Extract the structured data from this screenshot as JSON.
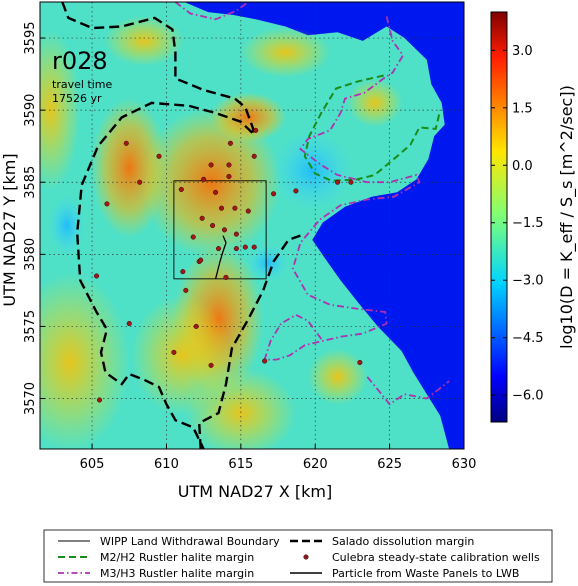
{
  "chart_data": {
    "type": "heatmap",
    "annotation": {
      "run_id": "r028",
      "travel_time_label": "travel time",
      "travel_time_value": "17526 yr"
    },
    "xlabel": "UTM NAD27 X [km]",
    "ylabel": "UTM NAD27 Y [km]",
    "xlim": [
      601.5,
      630
    ],
    "ylim": [
      3566.5,
      3597.5
    ],
    "xticks": [
      605,
      610,
      615,
      620,
      625,
      630
    ],
    "yticks": [
      3570,
      3575,
      3580,
      3585,
      3590,
      3595
    ],
    "grid": true,
    "colorbar": {
      "label": "log10(D = K_eff / S_s [m^2/sec])",
      "range": [
        -6.7,
        4.0
      ],
      "ticks": [
        3.0,
        1.5,
        0.0,
        -1.5,
        -3.0,
        -4.5,
        -6.0
      ],
      "colormap": "jet"
    },
    "legend": {
      "placement": "below",
      "entries": [
        {
          "label": "WIPP Land Withdrawal Boundary",
          "style": "thin-solid",
          "color": "#000000"
        },
        {
          "label": "Salado dissolution margin",
          "style": "bold-dashed",
          "color": "#000000"
        },
        {
          "label": "M2/H2 Rustler halite margin",
          "style": "dashed",
          "color": "#1a8c1a"
        },
        {
          "label": "Culebra steady-state calibration wells",
          "style": "dot",
          "color": "#8b1a1a"
        },
        {
          "label": "M3/H3 Rustler halite margin",
          "style": "dash-dot",
          "color": "#b030b0"
        },
        {
          "label": "Particle from Waste Panels to LWB",
          "style": "solid",
          "color": "#000000"
        }
      ]
    },
    "wells": [
      [
        607.3,
        3587.7
      ],
      [
        608.2,
        3585.0
      ],
      [
        606.0,
        3583.5
      ],
      [
        605.3,
        3578.5
      ],
      [
        607.5,
        3575.2
      ],
      [
        609.5,
        3586.8
      ],
      [
        611.0,
        3584.5
      ],
      [
        612.5,
        3585.2
      ],
      [
        613.3,
        3584.3
      ],
      [
        614.2,
        3585.4
      ],
      [
        613.7,
        3583.2
      ],
      [
        614.6,
        3583.2
      ],
      [
        612.4,
        3582.5
      ],
      [
        613.1,
        3582.0
      ],
      [
        613.9,
        3581.7
      ],
      [
        614.7,
        3581.4
      ],
      [
        615.5,
        3583.0
      ],
      [
        613.5,
        3580.4
      ],
      [
        614.7,
        3580.4
      ],
      [
        615.3,
        3580.5
      ],
      [
        612.2,
        3579.5
      ],
      [
        611.1,
        3578.8
      ],
      [
        611.8,
        3581.2
      ],
      [
        612.3,
        3579.6
      ],
      [
        617.2,
        3584.2
      ],
      [
        618.7,
        3584.4
      ],
      [
        615.9,
        3586.8
      ],
      [
        616.0,
        3588.6
      ],
      [
        614.3,
        3587.7
      ],
      [
        613.0,
        3586.2
      ],
      [
        614.0,
        3578.4
      ],
      [
        611.3,
        3577.5
      ],
      [
        612.0,
        3575.0
      ],
      [
        613.0,
        3572.3
      ],
      [
        621.5,
        3585.0
      ],
      [
        622.4,
        3585.0
      ],
      [
        623.0,
        3572.5
      ],
      [
        616.6,
        3572.6
      ],
      [
        605.5,
        3569.9
      ],
      [
        615.9,
        3580.5
      ],
      [
        610.5,
        3573.2
      ],
      [
        614.2,
        3586.2
      ]
    ],
    "lwb_box": {
      "x": [
        610.5,
        616.7
      ],
      "y": [
        3578.3,
        3585.1
      ]
    },
    "particle_path": [
      [
        613.8,
        3581.3
      ],
      [
        614.0,
        3580.8
      ],
      [
        613.8,
        3580.2
      ],
      [
        613.6,
        3579.5
      ],
      [
        613.3,
        3578.3
      ]
    ],
    "salado_margin": [
      [
        603.0,
        3597.5
      ],
      [
        603.4,
        3596.4
      ],
      [
        605.0,
        3595.7
      ],
      [
        607.0,
        3595.8
      ],
      [
        609.2,
        3596.4
      ],
      [
        610.4,
        3595.6
      ],
      [
        610.6,
        3594.0
      ],
      [
        610.6,
        3592.2
      ],
      [
        612.5,
        3591.4
      ],
      [
        614.6,
        3590.8
      ],
      [
        615.3,
        3590.2
      ],
      [
        615.8,
        3588.8
      ],
      [
        615.9,
        3588.3
      ],
      [
        615.0,
        3589.2
      ],
      [
        613.3,
        3589.8
      ],
      [
        611.5,
        3590.3
      ],
      [
        609.0,
        3590.5
      ],
      [
        607.0,
        3589.5
      ],
      [
        605.4,
        3587.5
      ],
      [
        604.3,
        3584.8
      ],
      [
        604.0,
        3581.5
      ],
      [
        604.2,
        3578.2
      ],
      [
        605.3,
        3576.0
      ],
      [
        606.0,
        3574.8
      ],
      [
        605.6,
        3573.2
      ],
      [
        605.9,
        3571.8
      ],
      [
        607.0,
        3571.0
      ],
      [
        607.5,
        3571.7
      ],
      [
        608.5,
        3571.3
      ],
      [
        609.5,
        3570.8
      ],
      [
        610.0,
        3569.6
      ],
      [
        610.6,
        3568.5
      ],
      [
        611.8,
        3568.0
      ],
      [
        612.5,
        3566.5
      ]
    ],
    "salado_margin_2": [
      [
        612.3,
        3566.5
      ],
      [
        612.2,
        3568.3
      ],
      [
        613.5,
        3569.0
      ],
      [
        614.0,
        3571.0
      ],
      [
        614.4,
        3573.5
      ],
      [
        615.5,
        3575.5
      ],
      [
        616.5,
        3577.5
      ],
      [
        617.2,
        3579.5
      ],
      [
        618.2,
        3581.0
      ],
      [
        619.0,
        3581.3
      ]
    ],
    "m2_margin": [
      [
        624.6,
        3592.4
      ],
      [
        622.9,
        3592.0
      ],
      [
        621.4,
        3591.5
      ],
      [
        620.4,
        3589.8
      ],
      [
        619.6,
        3588.2
      ],
      [
        619.3,
        3586.8
      ],
      [
        620.0,
        3585.6
      ],
      [
        621.1,
        3585.1
      ],
      [
        622.8,
        3585.2
      ],
      [
        624.0,
        3585.5
      ],
      [
        625.5,
        3586.8
      ],
      [
        626.4,
        3587.6
      ],
      [
        627.0,
        3588.8
      ],
      [
        628.1,
        3588.7
      ],
      [
        628.4,
        3590.0
      ]
    ],
    "m3_margin": [
      [
        624.8,
        3596.5
      ],
      [
        625.2,
        3594.8
      ],
      [
        625.9,
        3593.8
      ],
      [
        625.2,
        3592.6
      ],
      [
        624.6,
        3592.2
      ],
      [
        623.3,
        3591.2
      ],
      [
        622.0,
        3590.8
      ],
      [
        621.7,
        3589.8
      ],
      [
        621.0,
        3588.6
      ],
      [
        619.5,
        3588.0
      ],
      [
        619.0,
        3587.3
      ],
      [
        620.4,
        3586.2
      ],
      [
        621.5,
        3585.5
      ],
      [
        623.5,
        3585.0
      ],
      [
        625.0,
        3585.0
      ],
      [
        626.8,
        3585.5
      ],
      [
        627.0,
        3585.0
      ],
      [
        625.3,
        3584.0
      ],
      [
        623.5,
        3583.8
      ],
      [
        621.7,
        3583.4
      ],
      [
        620.3,
        3582.4
      ],
      [
        619.0,
        3580.8
      ],
      [
        618.5,
        3579.0
      ],
      [
        619.5,
        3577.2
      ],
      [
        621.0,
        3576.5
      ],
      [
        623.0,
        3576.2
      ],
      [
        624.7,
        3576.0
      ],
      [
        624.8,
        3575.2
      ],
      [
        623.2,
        3574.5
      ],
      [
        621.8,
        3574.3
      ],
      [
        620.5,
        3574.0
      ],
      [
        619.3,
        3573.7
      ],
      [
        618.3,
        3573.0
      ],
      [
        617.4,
        3572.7
      ],
      [
        616.6,
        3572.7
      ],
      [
        617.0,
        3574.0
      ],
      [
        617.7,
        3575.2
      ],
      [
        618.7,
        3575.8
      ],
      [
        619.5,
        3575.4
      ],
      [
        620.5,
        3574.0
      ]
    ],
    "m3_margin_top": [
      [
        610.6,
        3597.5
      ],
      [
        611.6,
        3596.7
      ],
      [
        613.3,
        3596.3
      ],
      [
        614.7,
        3596.9
      ],
      [
        615.5,
        3597.5
      ]
    ],
    "m3_margin_far": [
      [
        623.5,
        3571.5
      ],
      [
        624.3,
        3570.5
      ],
      [
        625.0,
        3569.6
      ],
      [
        626.0,
        3570.3
      ],
      [
        627.5,
        3570.0
      ],
      [
        629.0,
        3571.2
      ]
    ]
  }
}
